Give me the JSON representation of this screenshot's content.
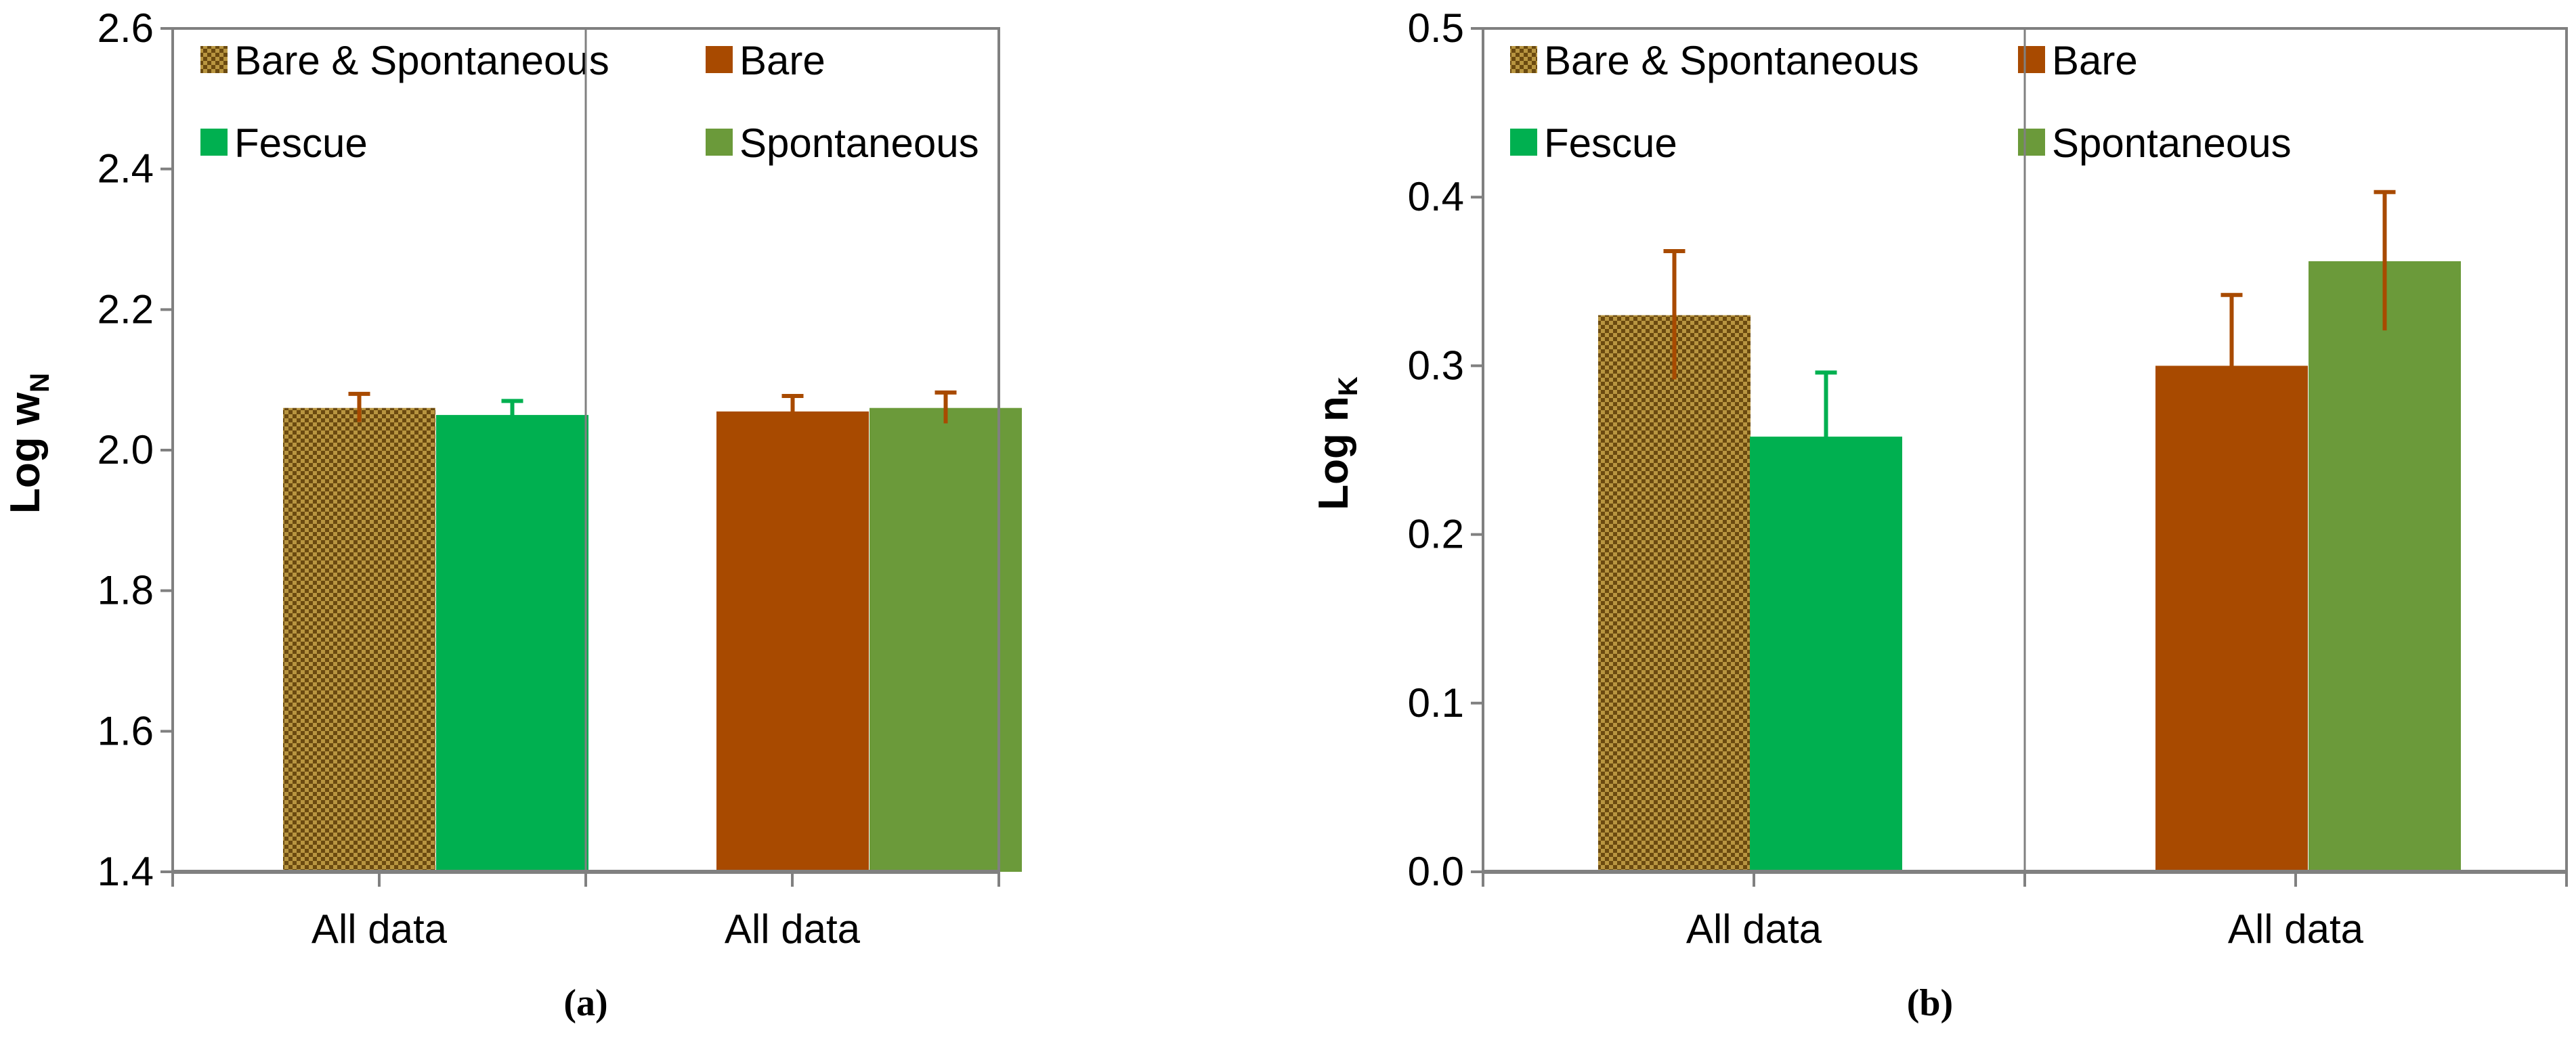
{
  "chart_data": [
    {
      "type": "bar",
      "panel_label": "(a)",
      "ylabel": "Log w",
      "ylabel_subscript": "N",
      "ylim": [
        1.4,
        2.6
      ],
      "yticks": [
        "1.4",
        "1.6",
        "1.8",
        "2.0",
        "2.2",
        "2.4",
        "2.6"
      ],
      "groups": [
        {
          "category": "All data",
          "bars": [
            {
              "series": "Bare & Spontaneous",
              "value": 2.06,
              "error": 0.02
            },
            {
              "series": "Fescue",
              "value": 2.05,
              "error": 0.02
            }
          ]
        },
        {
          "category": "All data",
          "bars": [
            {
              "series": "Bare",
              "value": 2.055,
              "error": 0.022
            },
            {
              "series": "Spontaneous",
              "value": 2.06,
              "error": 0.022
            }
          ]
        }
      ],
      "legend": [
        {
          "label": "Bare & Spontaneous",
          "series": "Bare & Spontaneous"
        },
        {
          "label": "Bare",
          "series": "Bare"
        },
        {
          "label": "Fescue",
          "series": "Fescue"
        },
        {
          "label": "Spontaneous",
          "series": "Spontaneous"
        }
      ],
      "grid": false
    },
    {
      "type": "bar",
      "panel_label": "(b)",
      "ylabel": "Log n",
      "ylabel_subscript": "K",
      "ylim": [
        0.0,
        0.5
      ],
      "yticks": [
        "0.0",
        "0.1",
        "0.2",
        "0.3",
        "0.4",
        "0.5"
      ],
      "groups": [
        {
          "category": "All data",
          "bars": [
            {
              "series": "Bare & Spontaneous",
              "value": 0.33,
              "error": 0.038
            },
            {
              "series": "Fescue",
              "value": 0.258,
              "error": 0.038
            }
          ]
        },
        {
          "category": "All data",
          "bars": [
            {
              "series": "Bare",
              "value": 0.3,
              "error": 0.042
            },
            {
              "series": "Spontaneous",
              "value": 0.362,
              "error": 0.041
            }
          ]
        }
      ],
      "legend": [
        {
          "label": "Bare & Spontaneous",
          "series": "Bare & Spontaneous"
        },
        {
          "label": "Bare",
          "series": "Bare"
        },
        {
          "label": "Fescue",
          "series": "Fescue"
        },
        {
          "label": "Spontaneous",
          "series": "Spontaneous"
        }
      ],
      "grid": false
    }
  ],
  "series_colors": {
    "Bare & Spontaneous": "#8b6a1e",
    "Fescue": "#00b050",
    "Bare": "#a84a00",
    "Spontaneous": "#6b9a3a"
  },
  "pattern_colors": {
    "checker_dark": "#6b4a10",
    "checker_light": "#b89540"
  },
  "axis_color": "#808080",
  "error_color": "#a84a00"
}
